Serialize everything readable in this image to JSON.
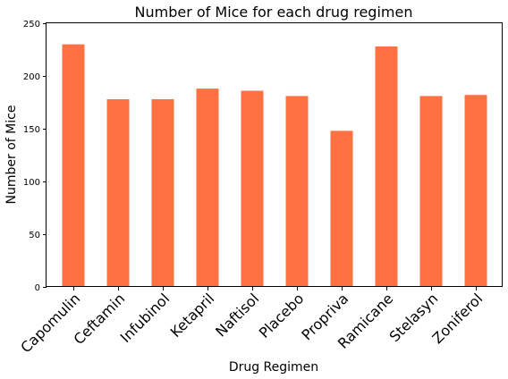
{
  "chart_data": {
    "type": "bar",
    "title": "Number of Mice for each drug regimen",
    "xlabel": "Drug Regimen",
    "ylabel": "Number of Mice",
    "categories": [
      "Capomulin",
      "Ceftamin",
      "Infubinol",
      "Ketapril",
      "Naftisol",
      "Placebo",
      "Propriva",
      "Ramicane",
      "Stelasyn",
      "Zoniferol"
    ],
    "values": [
      230,
      178,
      178,
      188,
      186,
      181,
      148,
      228,
      181,
      182
    ],
    "ylim": [
      0,
      250
    ],
    "yticks": [
      0,
      50,
      100,
      150,
      200,
      250
    ],
    "bar_color": "#ff7043",
    "grid": false,
    "xtick_rotation": "45 degrees"
  }
}
